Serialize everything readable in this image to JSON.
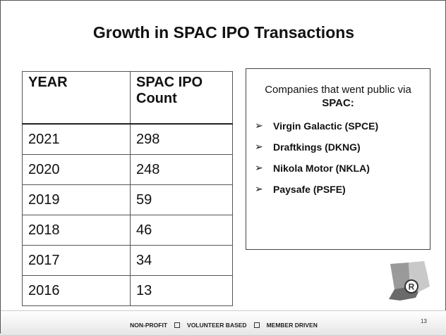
{
  "header": {
    "title": "Growth in SPAC IPO Transactions"
  },
  "table": {
    "columns": [
      "YEAR",
      "SPAC IPO Count"
    ],
    "rows": [
      [
        2021,
        298
      ],
      [
        2020,
        248
      ],
      [
        2019,
        59
      ],
      [
        2018,
        46
      ],
      [
        2017,
        34
      ],
      [
        2016,
        13
      ]
    ]
  },
  "box": {
    "intro": "Companies that went public via",
    "intro_bold": "SPAC:",
    "items": [
      "Virgin Galactic (SPCE)",
      "Draftkings (DKNG)",
      "Nikola Motor (NKLA)",
      "Paysafe (PSFE)"
    ]
  },
  "footer": {
    "items": [
      "NON-PROFIT",
      "VOLUNTEER BASED",
      "MEMBER DRIVEN"
    ],
    "page_number": "13"
  }
}
